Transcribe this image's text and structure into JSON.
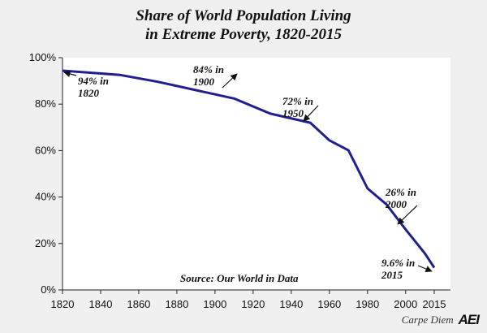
{
  "chart_data": {
    "type": "line",
    "title": [
      "Share of World Population Living",
      "in Extreme Poverty, 1820-2015"
    ],
    "xlim": [
      1820,
      2015
    ],
    "ylim": [
      0,
      100
    ],
    "x_ticks": [
      1820,
      1840,
      1860,
      1880,
      1900,
      1920,
      1940,
      1960,
      1980,
      2000,
      2015
    ],
    "x_tick_labels": [
      "1820",
      "1840",
      "1860",
      "1880",
      "1900",
      "1920",
      "1940",
      "1960",
      "1980",
      "2000",
      "2015"
    ],
    "y_ticks": [
      0,
      20,
      40,
      60,
      80,
      100
    ],
    "y_tick_labels": [
      "0%",
      "20%",
      "40%",
      "60%",
      "80%",
      "100%"
    ],
    "series": [
      {
        "color": "#1f1f8f",
        "points": [
          [
            1820,
            94.4
          ],
          [
            1850,
            92.6
          ],
          [
            1870,
            89.6
          ],
          [
            1890,
            86.0
          ],
          [
            1910,
            82.4
          ],
          [
            1929,
            75.9
          ],
          [
            1950,
            72.0
          ],
          [
            1960,
            64.4
          ],
          [
            1970,
            60.1
          ],
          [
            1980,
            43.7
          ],
          [
            1990,
            36.8
          ],
          [
            2000,
            26.0
          ],
          [
            2010,
            15.8
          ],
          [
            2015,
            9.6
          ]
        ]
      }
    ],
    "annotations": [
      {
        "lines": [
          "94% in",
          "1820"
        ]
      },
      {
        "lines": [
          "84% in",
          "1900"
        ]
      },
      {
        "lines": [
          "72% in",
          "1950"
        ]
      },
      {
        "lines": [
          "26% in",
          "2000"
        ]
      },
      {
        "lines": [
          "9.6% in",
          "2015"
        ]
      }
    ],
    "source": "Source: Our World in Data",
    "grid": false,
    "legend": "none"
  },
  "footer": {
    "credit": "Carpe Diem",
    "logo": "AEI"
  }
}
